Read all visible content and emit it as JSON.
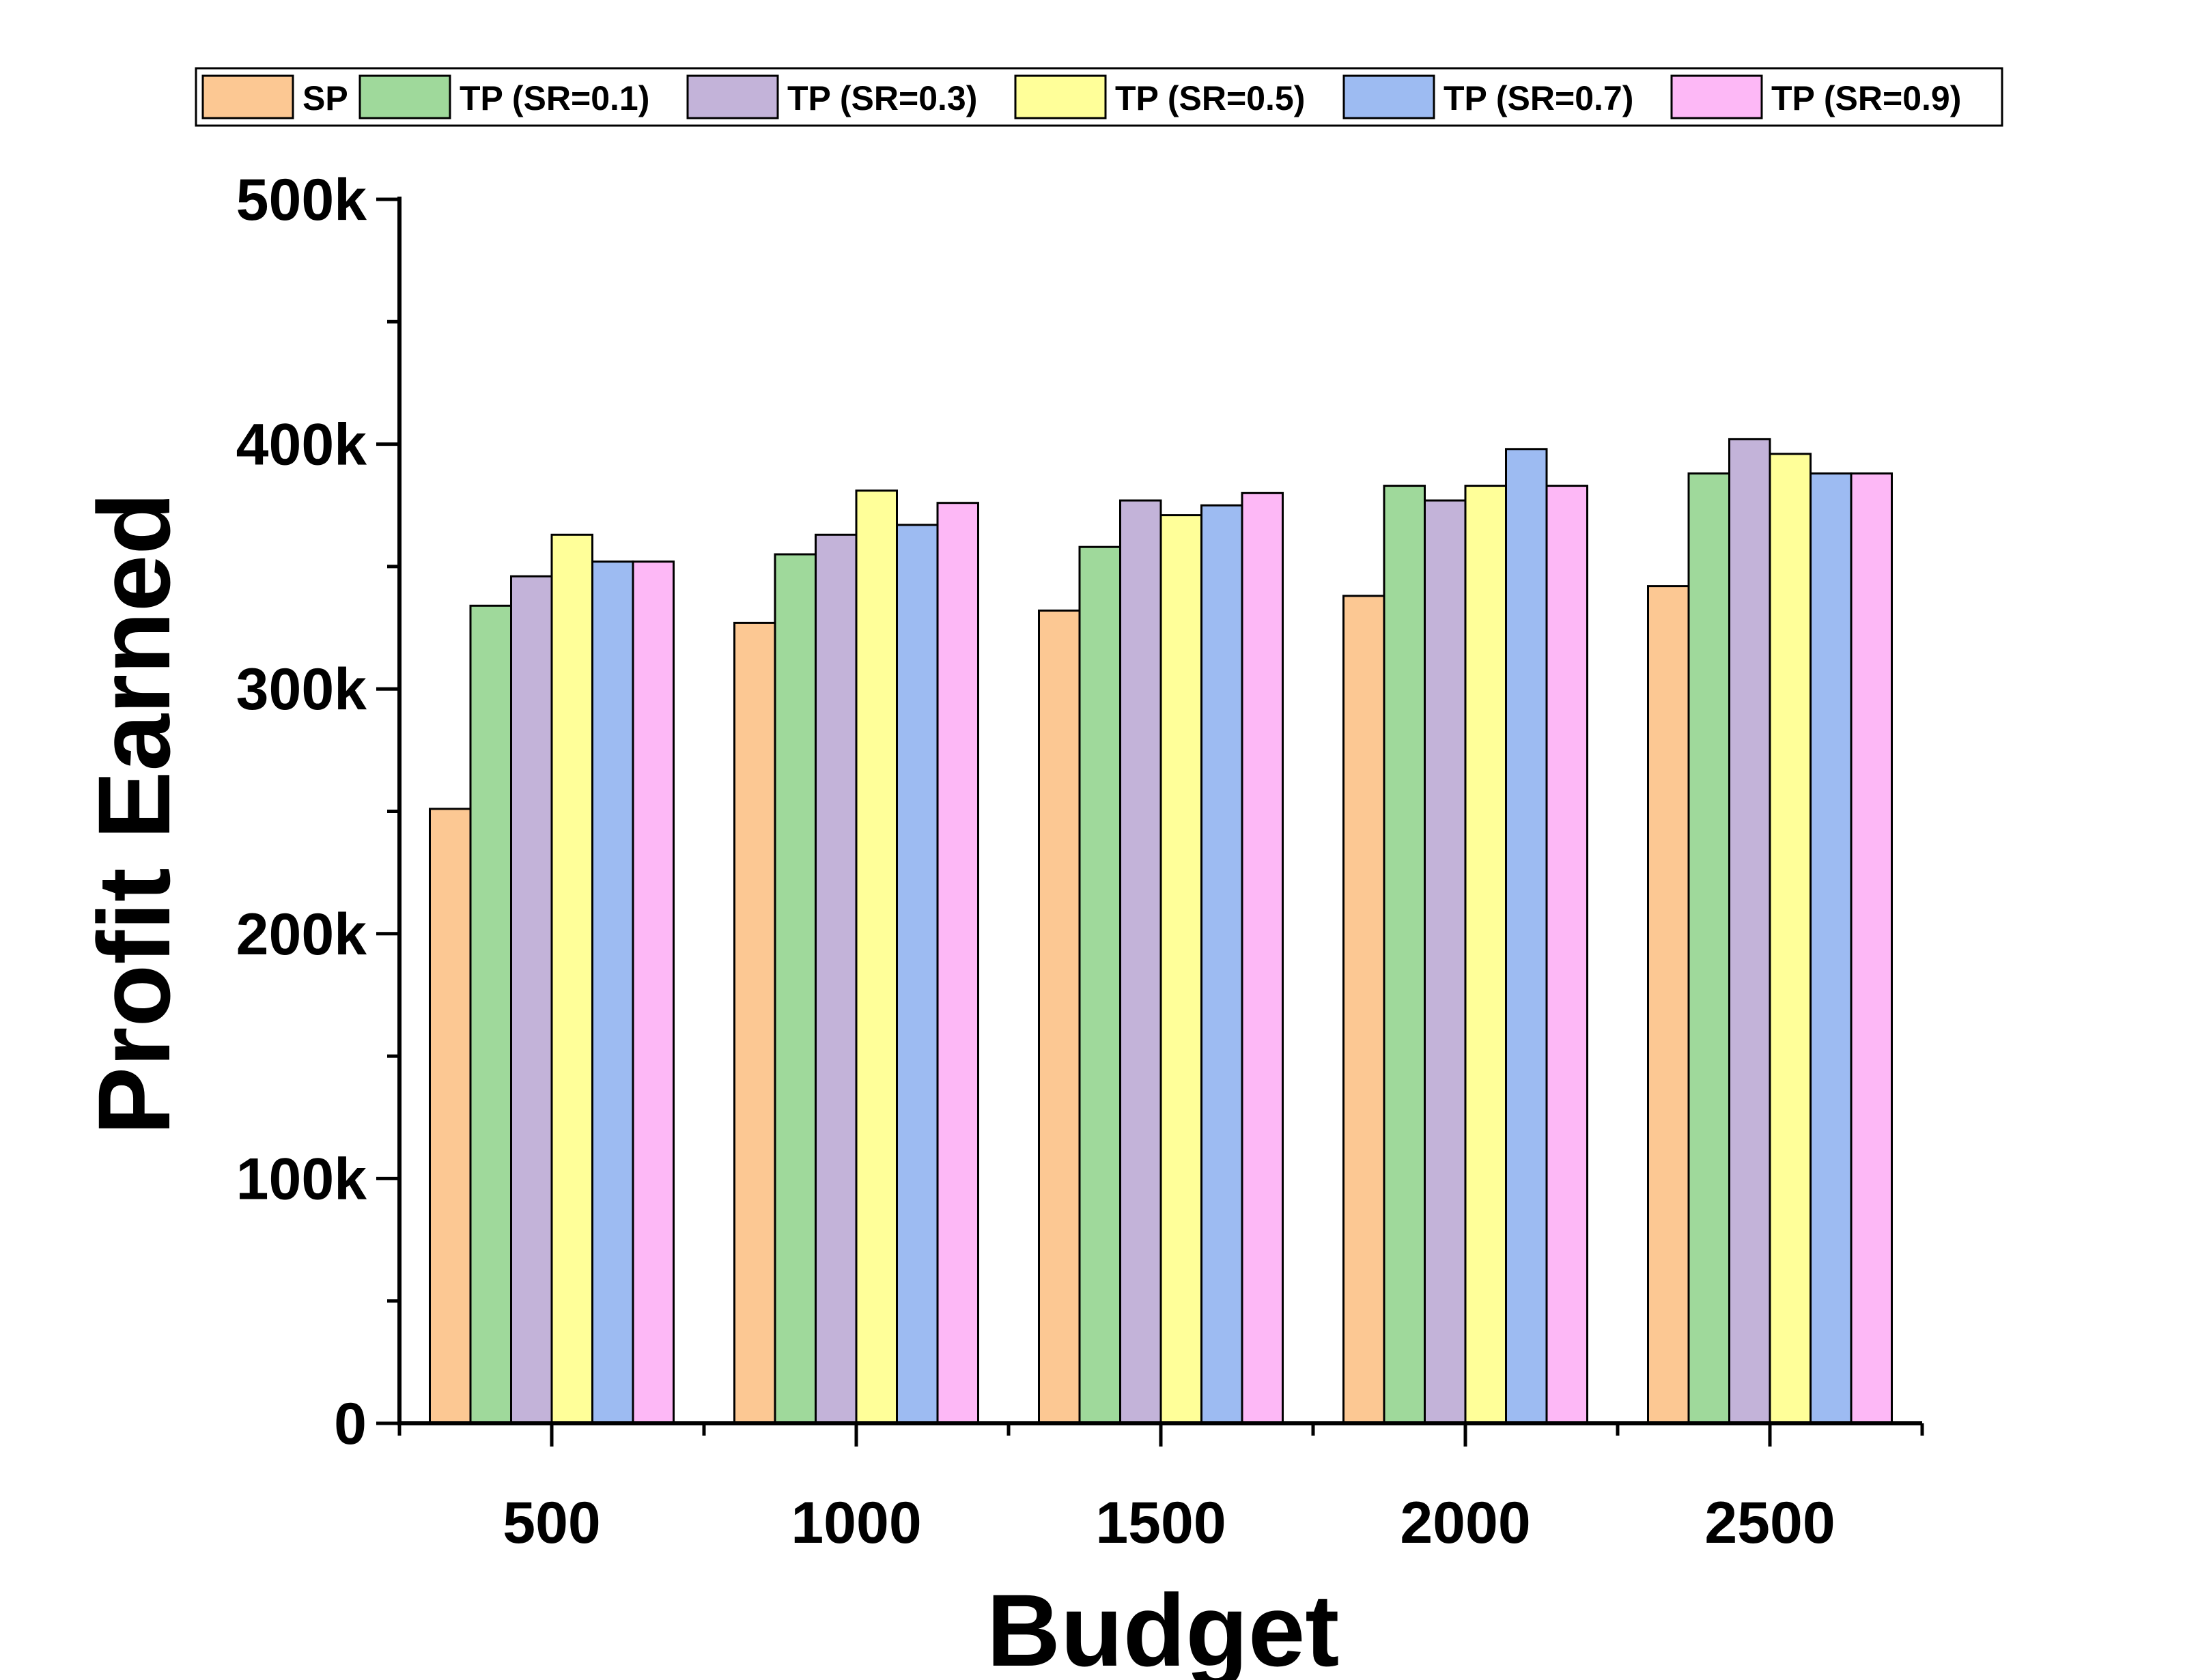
{
  "chart_data": {
    "type": "bar",
    "title": "",
    "xlabel": "Budget",
    "ylabel": "Profit Earned",
    "categories": [
      "500",
      "1000",
      "1500",
      "2000",
      "2500"
    ],
    "ylim": [
      0,
      500000
    ],
    "yticks": [
      0,
      100000,
      200000,
      300000,
      400000,
      500000
    ],
    "ytick_labels": [
      "0",
      "100k",
      "200k",
      "300k",
      "400k",
      "500k"
    ],
    "legend_position": "top",
    "grid": false,
    "series": [
      {
        "name": "SP",
        "color": "#FCC893",
        "values": [
          251000,
          327000,
          332000,
          338000,
          342000
        ]
      },
      {
        "name": "TP (SR=0.1)",
        "color": "#9FD99B",
        "values": [
          334000,
          355000,
          358000,
          383000,
          388000
        ]
      },
      {
        "name": "TP (SR=0.3)",
        "color": "#C3B3D9",
        "values": [
          346000,
          363000,
          377000,
          377000,
          402000
        ]
      },
      {
        "name": "TP (SR=0.5)",
        "color": "#FFFF99",
        "values": [
          363000,
          381000,
          371000,
          383000,
          396000
        ]
      },
      {
        "name": "TP (SR=0.7)",
        "color": "#9DBBF2",
        "values": [
          352000,
          367000,
          375000,
          398000,
          388000
        ]
      },
      {
        "name": "TP (SR=0.9)",
        "color": "#FDB8F6",
        "values": [
          352000,
          376000,
          380000,
          383000,
          388000
        ]
      }
    ]
  }
}
